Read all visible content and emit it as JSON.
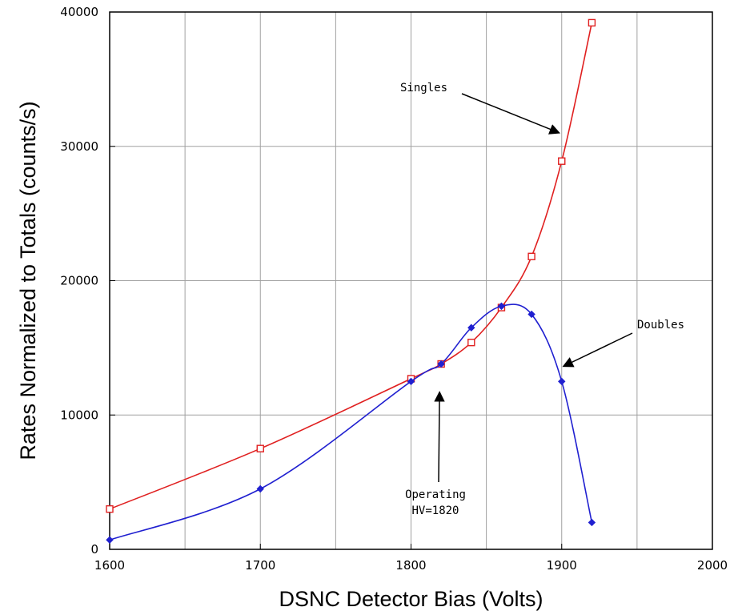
{
  "chart_data": {
    "type": "line",
    "title": "",
    "xlabel": "DSNC Detector Bias (Volts)",
    "ylabel": "Rates Normalized to Totals (counts/s)",
    "xlim": [
      1600,
      2000
    ],
    "ylim": [
      0,
      40000
    ],
    "xticks": [
      1600,
      1700,
      1800,
      1900,
      2000
    ],
    "xticks_label": [
      "1600",
      "1700",
      "1800",
      "1900",
      "2000"
    ],
    "yticks": [
      0,
      10000,
      20000,
      30000,
      40000
    ],
    "yticks_label": [
      "0",
      "10000",
      "20000",
      "30000",
      "40000"
    ],
    "grid": true,
    "series": [
      {
        "name": "Singles",
        "color": "#e02020",
        "marker": "open-square",
        "x": [
          1600,
          1700,
          1800,
          1820,
          1840,
          1860,
          1880,
          1900,
          1920
        ],
        "y": [
          3000,
          7500,
          12700,
          13800,
          15400,
          18000,
          21800,
          28900,
          39200
        ]
      },
      {
        "name": "Doubles",
        "color": "#2020d0",
        "marker": "filled-diamond",
        "x": [
          1600,
          1700,
          1800,
          1820,
          1840,
          1860,
          1880,
          1900,
          1920
        ],
        "y": [
          700,
          4500,
          12500,
          13800,
          16500,
          18100,
          17500,
          12500,
          2000
        ]
      }
    ],
    "annotations": [
      {
        "text": "Singles",
        "arrow_to": [
          1900,
          31000
        ]
      },
      {
        "text": "Doubles",
        "arrow_to": [
          1900,
          13800
        ]
      },
      {
        "lines": [
          "Operating",
          "HV=1820"
        ],
        "arrow_to": [
          1820,
          11000
        ]
      }
    ]
  }
}
